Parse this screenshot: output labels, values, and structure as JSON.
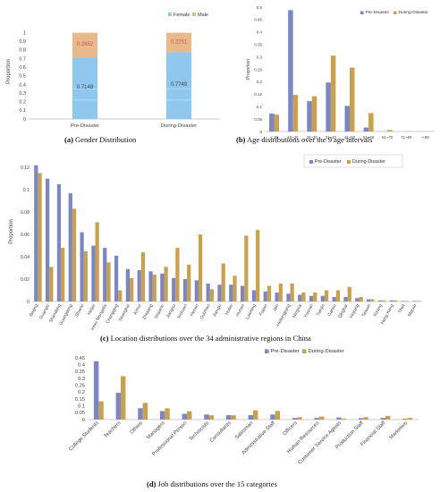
{
  "colors": {
    "pre": "#7B86C8",
    "during": "#C9A14B",
    "female": "#8EC8EE",
    "male": "#E8B98A"
  },
  "captions": {
    "a": {
      "letter": "(a)",
      "text": "Gender Distribution"
    },
    "b": {
      "letter": "(b)",
      "text": "Age distributions over the 9 age intervals"
    },
    "c": {
      "letter": "(c)",
      "text": "Location distributions over the 34 administrative regions in China"
    },
    "d": {
      "letter": "(d)",
      "text": "Job distributions over the 15 categories"
    }
  },
  "chart_data": [
    {
      "id": "a",
      "type": "bar",
      "stacked": true,
      "normalized": true,
      "categories": [
        "Pre-Disaster",
        "During-Disaster"
      ],
      "series": [
        {
          "name": "Female",
          "values": [
            0.7148,
            0.7749
          ]
        },
        {
          "name": "Male",
          "values": [
            0.2852,
            0.2251
          ]
        }
      ],
      "data_labels": [
        "0.7148",
        "0.2852",
        "0.7749",
        "0.2251"
      ],
      "ylabel": "Proportion",
      "ylim": [
        0,
        1.1
      ],
      "yticks": [
        "0",
        "0.1",
        "0.2",
        "0.3",
        "0.4",
        "0.5",
        "0.6",
        "0.7",
        "0.8",
        "0.9",
        "1"
      ],
      "legend": "top-right"
    },
    {
      "id": "b",
      "type": "bar",
      "categories": [
        "< 18",
        "18~25",
        "26~30",
        "31~40",
        "41~50",
        "51~60",
        "61~70",
        "71~80",
        "> 80"
      ],
      "series": [
        {
          "name": "Pre-Disaster",
          "values": [
            0.072,
            0.488,
            0.122,
            0.197,
            0.103,
            0.016,
            0.001,
            0.0,
            0.0
          ]
        },
        {
          "name": "During-Disaster",
          "values": [
            0.068,
            0.147,
            0.142,
            0.305,
            0.257,
            0.074,
            0.006,
            0.001,
            0.0
          ]
        }
      ],
      "ylabel": "Proportion",
      "ylim": [
        0,
        0.5
      ],
      "yticks": [
        "0",
        "0.05",
        "0.1",
        "0.15",
        "0.2",
        "0.25",
        "0.3",
        "0.35",
        "0.4",
        "0.45",
        "0.5"
      ],
      "legend": "top-right"
    },
    {
      "id": "c",
      "type": "bar",
      "categories": [
        "Beijing",
        "Guangxi",
        "Shandong",
        "Guangdong",
        "Shanxi",
        "Hebei",
        "Inner Mongolia",
        "Chongqing",
        "Shanghai",
        "Anhui",
        "Zhejiang",
        "Shaanxi",
        "Jiangsu",
        "Sichuan",
        "Henan",
        "Guizhou",
        "Jiangxi",
        "Hubei",
        "Hunan",
        "Liaoning",
        "Fujian",
        "Jilin",
        "Heilongjiang",
        "Ningxia",
        "Yunnan",
        "Tianjin",
        "Gansu",
        "Qinghai",
        "Xinjiang",
        "Taiwan",
        "Xizang",
        "Hong Kong",
        "Tibet",
        "Macao"
      ],
      "series": [
        {
          "name": "Pre-Disaster",
          "values": [
            0.122,
            0.11,
            0.105,
            0.097,
            0.062,
            0.05,
            0.048,
            0.041,
            0.029,
            0.028,
            0.027,
            0.025,
            0.021,
            0.02,
            0.019,
            0.016,
            0.015,
            0.015,
            0.014,
            0.01,
            0.009,
            0.008,
            0.007,
            0.006,
            0.005,
            0.005,
            0.004,
            0.004,
            0.003,
            0.002,
            0.001,
            0.001,
            0.0005,
            0.0005
          ]
        },
        {
          "name": "During-Disaster",
          "values": [
            0.115,
            0.031,
            0.048,
            0.083,
            0.045,
            0.071,
            0.035,
            0.01,
            0.021,
            0.044,
            0.024,
            0.031,
            0.048,
            0.033,
            0.06,
            0.011,
            0.034,
            0.023,
            0.059,
            0.064,
            0.014,
            0.016,
            0.016,
            0.008,
            0.008,
            0.01,
            0.01,
            0.013,
            0.004,
            0.002,
            0.001,
            0.001,
            0.0005,
            0.0005
          ]
        }
      ],
      "ylabel": "Proportion",
      "ylim": [
        0,
        0.125
      ],
      "yticks": [
        "0",
        "0.02",
        "0.04",
        "0.06",
        "0.08",
        "0.1",
        "0.12"
      ],
      "legend": "top-right"
    },
    {
      "id": "d",
      "type": "bar",
      "categories": [
        "College Students",
        "Teachers",
        "Others",
        "Managers",
        "Professional Person",
        "Technicists",
        "Consultants",
        "Salesman",
        "Administrative Staff",
        "Officers",
        "Human Resources",
        "Customer Service Agents",
        "Production Staff",
        "Financial Staff",
        "Marketers"
      ],
      "series": [
        {
          "name": "Pre-Disaster",
          "values": [
            0.425,
            0.195,
            0.083,
            0.062,
            0.042,
            0.037,
            0.032,
            0.032,
            0.037,
            0.012,
            0.012,
            0.015,
            0.01,
            0.012,
            0.006
          ]
        },
        {
          "name": "During-Disaster",
          "values": [
            0.133,
            0.316,
            0.122,
            0.082,
            0.06,
            0.031,
            0.031,
            0.067,
            0.063,
            0.017,
            0.022,
            0.007,
            0.017,
            0.027,
            0.012
          ]
        }
      ],
      "ylabel": "",
      "ylim": [
        0,
        0.45
      ],
      "yticks": [
        "0",
        "0.05",
        "0.1",
        "0.15",
        "0.2",
        "0.25",
        "0.3",
        "0.35",
        "0.4",
        "0.45"
      ],
      "legend": "top-right"
    }
  ]
}
